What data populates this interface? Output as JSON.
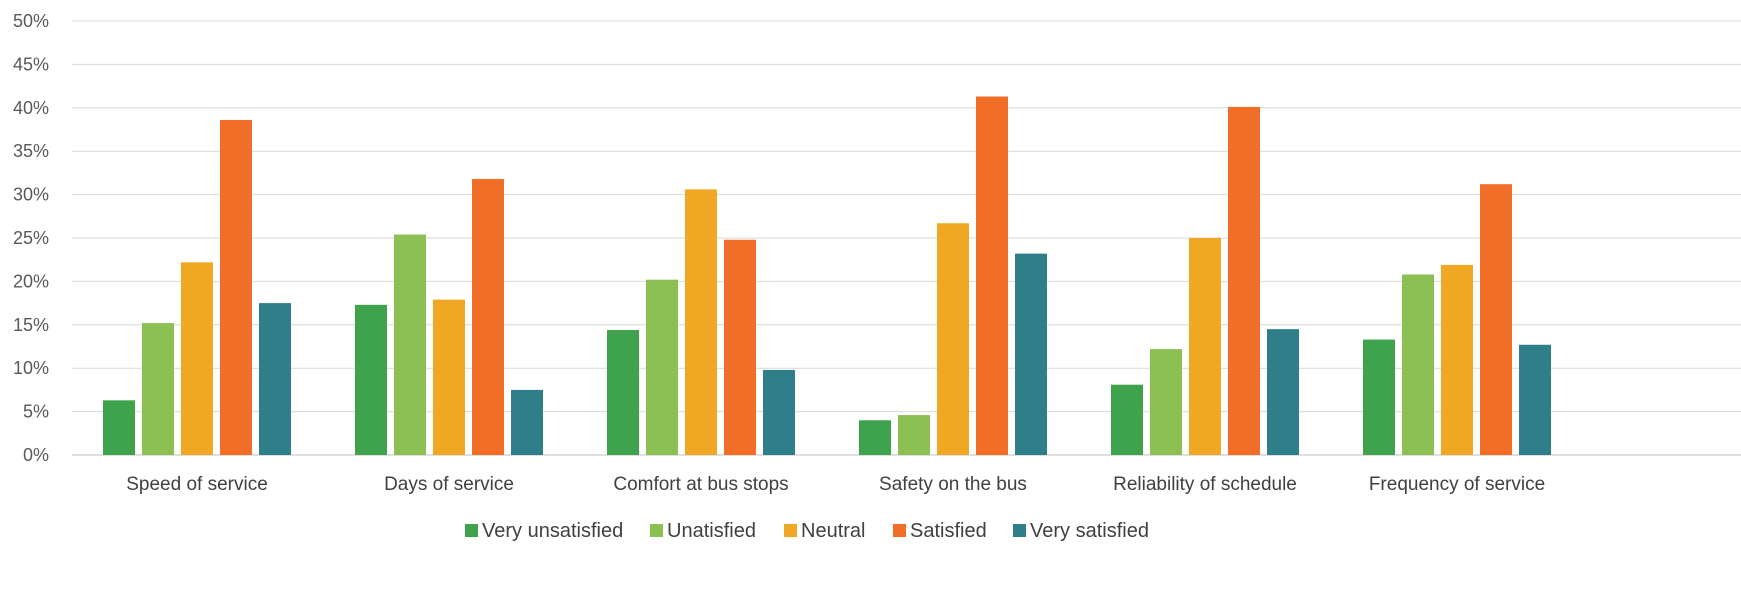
{
  "chart_data": {
    "type": "bar",
    "categories": [
      "Speed of service",
      "Days of service",
      "Comfort at bus stops",
      "Safety on the bus",
      "Reliability of schedule",
      "Frequency of service"
    ],
    "series": [
      {
        "name": "Very unsatisfied",
        "color": "#3fa34d",
        "values": [
          6.3,
          17.3,
          14.4,
          4.0,
          8.1,
          13.3
        ]
      },
      {
        "name": "Unatisfied",
        "color": "#8dc053",
        "values": [
          15.2,
          25.4,
          20.2,
          4.6,
          12.2,
          20.8
        ]
      },
      {
        "name": "Neutral",
        "color": "#f0a824",
        "values": [
          22.2,
          17.9,
          30.6,
          26.7,
          25.0,
          21.9
        ]
      },
      {
        "name": "Satisfied",
        "color": "#f06e28",
        "values": [
          38.6,
          31.8,
          24.8,
          41.3,
          40.1,
          31.2
        ]
      },
      {
        "name": "Very satisfied",
        "color": "#2f7f8a",
        "values": [
          17.5,
          7.5,
          9.8,
          23.2,
          14.5,
          12.7
        ]
      }
    ],
    "y_ticks": [
      "0%",
      "5%",
      "10%",
      "15%",
      "20%",
      "25%",
      "30%",
      "35%",
      "40%",
      "45%",
      "50%"
    ],
    "ylim": [
      0,
      50
    ],
    "ytick_step": 5,
    "grid": true,
    "legend_position": "bottom"
  }
}
